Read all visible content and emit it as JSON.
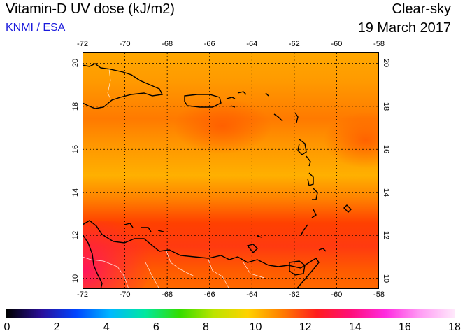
{
  "header": {
    "title": "Vitamin-D UV dose (kJ/m2)",
    "credit": "KNMI / ESA",
    "mode": "Clear-sky",
    "date": "19 March 2017"
  },
  "map": {
    "lon_range": [
      -72,
      -58
    ],
    "lat_range": [
      9.5,
      20.5
    ],
    "lon_ticks": [
      "-72",
      "-70",
      "-68",
      "-66",
      "-64",
      "-62",
      "-60",
      "-58"
    ],
    "lat_ticks": [
      "10",
      "12",
      "14",
      "16",
      "18",
      "20"
    ],
    "grid": true
  },
  "colorbar": {
    "labels": [
      "0",
      "2",
      "4",
      "6",
      "8",
      "10",
      "12",
      "14",
      "16",
      "18"
    ],
    "range": [
      0,
      18
    ],
    "colors": [
      "#000000",
      "#2a0f9a",
      "#0044ff",
      "#00b8ff",
      "#00e8a0",
      "#33dd00",
      "#bce400",
      "#ffd200",
      "#ff7d00",
      "#ff1d1d",
      "#ff0f7a",
      "#ff2be0",
      "#ff9cf4",
      "#ffe8fb"
    ]
  },
  "colors": {
    "land_outline": "#000000",
    "grid": "#000000",
    "border": "#ffffff"
  }
}
